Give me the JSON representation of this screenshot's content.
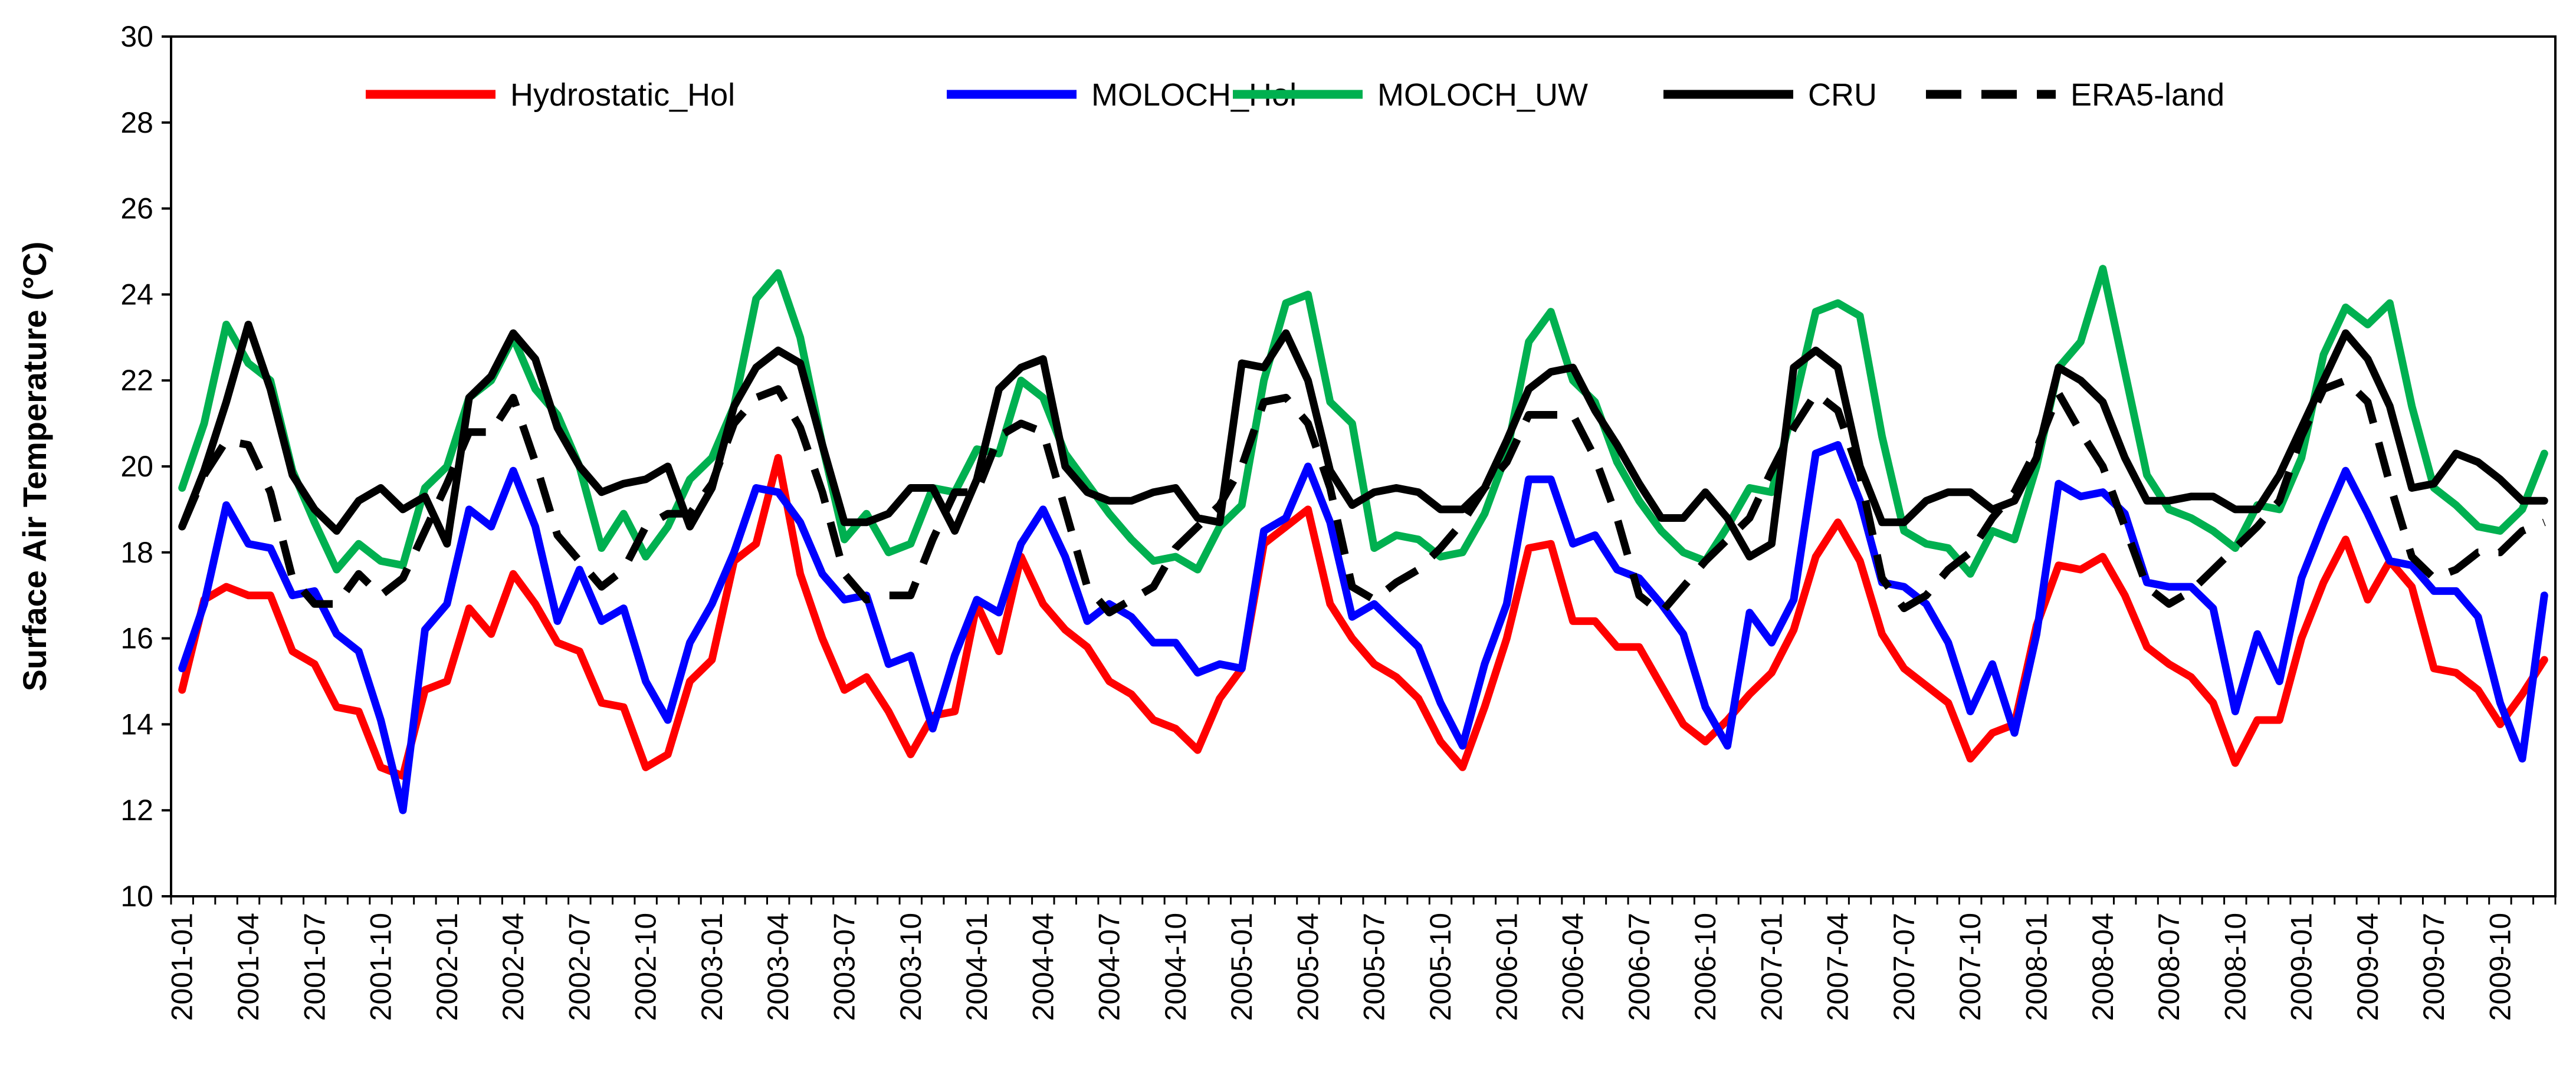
{
  "chart_data": {
    "type": "line",
    "title": "",
    "xlabel": "",
    "ylabel": "Surface Air Temperature (°C)",
    "ylim": [
      10,
      30
    ],
    "y_ticks": [
      10,
      12,
      14,
      16,
      18,
      20,
      22,
      24,
      26,
      28,
      30
    ],
    "grid": false,
    "legend_position": "top",
    "x_tick_labels": [
      "2001-01",
      "2001-04",
      "2001-07",
      "2001-10",
      "2002-01",
      "2002-04",
      "2002-07",
      "2002-10",
      "2003-01",
      "2003-04",
      "2003-07",
      "2003-10",
      "2004-01",
      "2004-04",
      "2004-07",
      "2004-10",
      "2005-01",
      "2005-04",
      "2005-07",
      "2005-10",
      "2006-01",
      "2006-04",
      "2006-07",
      "2006-10",
      "2007-01",
      "2007-04",
      "2007-07",
      "2007-10",
      "2008-01",
      "2008-04",
      "2008-07",
      "2008-10",
      "2009-01",
      "2009-04",
      "2009-07",
      "2009-10"
    ],
    "series": [
      {
        "name": "Hydrostatic_Hol",
        "color": "#ff0000",
        "dash": "solid",
        "values": [
          14.8,
          16.9,
          17.2,
          17.0,
          17.0,
          15.7,
          15.4,
          14.4,
          14.3,
          13.0,
          12.8,
          14.8,
          15.0,
          16.7,
          16.1,
          17.5,
          16.8,
          15.9,
          15.7,
          14.5,
          14.4,
          13.0,
          13.3,
          15.0,
          15.5,
          17.8,
          18.2,
          20.2,
          17.5,
          16.0,
          14.8,
          15.1,
          14.3,
          13.3,
          14.2,
          14.3,
          16.8,
          15.7,
          17.9,
          16.8,
          16.2,
          15.8,
          15.0,
          14.7,
          14.1,
          13.9,
          13.4,
          14.6,
          15.3,
          18.2,
          18.6,
          19.0,
          16.8,
          16.0,
          15.4,
          15.1,
          14.6,
          13.6,
          13.0,
          14.4,
          16.0,
          18.1,
          18.2,
          16.4,
          16.4,
          15.8,
          15.8,
          14.9,
          14.0,
          13.6,
          14.1,
          14.7,
          15.2,
          16.2,
          17.9,
          18.7,
          17.8,
          16.1,
          15.3,
          14.9,
          14.5,
          13.2,
          13.8,
          14.0,
          16.3,
          17.7,
          17.6,
          17.9,
          17.0,
          15.8,
          15.4,
          15.1,
          14.5,
          13.1,
          14.1,
          14.1,
          16.0,
          17.3,
          18.3,
          16.9,
          17.8,
          17.2,
          15.3,
          15.2,
          14.8,
          14.0,
          14.7,
          15.5
        ]
      },
      {
        "name": "MOLOCH_Hol",
        "color": "#0000ff",
        "dash": "solid",
        "values": [
          15.3,
          16.8,
          19.1,
          18.2,
          18.1,
          17.0,
          17.1,
          16.1,
          15.7,
          14.1,
          12.0,
          16.2,
          16.8,
          19.0,
          18.6,
          19.9,
          18.6,
          16.4,
          17.6,
          16.4,
          16.7,
          15.0,
          14.1,
          15.9,
          16.8,
          18.0,
          19.5,
          19.4,
          18.7,
          17.5,
          16.9,
          17.0,
          15.4,
          15.6,
          13.9,
          15.6,
          16.9,
          16.6,
          18.2,
          19.0,
          17.9,
          16.4,
          16.8,
          16.5,
          15.9,
          15.9,
          15.2,
          15.4,
          15.3,
          18.5,
          18.8,
          20.0,
          18.7,
          16.5,
          16.8,
          16.3,
          15.8,
          14.5,
          13.5,
          15.4,
          16.8,
          19.7,
          19.7,
          18.2,
          18.4,
          17.6,
          17.4,
          16.8,
          16.1,
          14.4,
          13.5,
          16.6,
          15.9,
          16.9,
          20.3,
          20.5,
          19.2,
          17.3,
          17.2,
          16.8,
          15.9,
          14.3,
          15.4,
          13.8,
          16.1,
          19.6,
          19.3,
          19.4,
          18.9,
          17.3,
          17.2,
          17.2,
          16.7,
          14.3,
          16.1,
          15.0,
          17.4,
          18.7,
          19.9,
          18.9,
          17.8,
          17.7,
          17.1,
          17.1,
          16.5,
          14.5,
          13.2,
          17.0
        ]
      },
      {
        "name": "MOLOCH_UW",
        "color": "#00b050",
        "dash": "solid",
        "values": [
          19.5,
          21.0,
          23.3,
          22.4,
          22.0,
          19.9,
          18.7,
          17.6,
          18.2,
          17.8,
          17.7,
          19.5,
          20.0,
          21.6,
          22.0,
          23.0,
          21.8,
          21.2,
          20.0,
          18.1,
          18.9,
          17.9,
          18.6,
          19.7,
          20.2,
          21.4,
          23.9,
          24.5,
          23.0,
          20.5,
          18.3,
          18.9,
          18.0,
          18.2,
          19.5,
          19.4,
          20.4,
          20.3,
          22.0,
          21.6,
          20.3,
          19.6,
          18.9,
          18.3,
          17.8,
          17.9,
          17.6,
          18.6,
          19.1,
          22.0,
          23.8,
          24.0,
          21.5,
          21.0,
          18.1,
          18.4,
          18.3,
          17.9,
          18.0,
          18.9,
          20.3,
          22.9,
          23.6,
          22.0,
          21.5,
          20.1,
          19.2,
          18.5,
          18.0,
          17.8,
          18.6,
          19.5,
          19.4,
          21.4,
          23.6,
          23.8,
          23.5,
          20.7,
          18.5,
          18.2,
          18.1,
          17.5,
          18.5,
          18.3,
          20.0,
          22.3,
          22.9,
          24.6,
          22.2,
          19.8,
          19.0,
          18.8,
          18.5,
          18.1,
          19.1,
          19.0,
          20.2,
          22.6,
          23.7,
          23.3,
          23.8,
          21.4,
          19.5,
          19.1,
          18.6,
          18.5,
          19.0,
          20.3
        ]
      },
      {
        "name": "CRU",
        "color": "#000000",
        "dash": "solid",
        "values": [
          18.6,
          19.9,
          21.5,
          23.3,
          21.8,
          19.8,
          19.0,
          18.5,
          19.2,
          19.5,
          19.0,
          19.3,
          18.2,
          21.6,
          22.1,
          23.1,
          22.5,
          20.9,
          20.0,
          19.4,
          19.6,
          19.7,
          20.0,
          18.6,
          19.5,
          21.4,
          22.3,
          22.7,
          22.4,
          20.5,
          18.7,
          18.7,
          18.9,
          19.5,
          19.5,
          18.5,
          19.7,
          21.8,
          22.3,
          22.5,
          20.0,
          19.4,
          19.2,
          19.2,
          19.4,
          19.5,
          18.8,
          18.7,
          22.4,
          22.3,
          23.1,
          22.0,
          19.9,
          19.1,
          19.4,
          19.5,
          19.4,
          19.0,
          19.0,
          19.5,
          20.6,
          21.8,
          22.2,
          22.3,
          21.3,
          20.5,
          19.6,
          18.8,
          18.8,
          19.4,
          18.8,
          17.9,
          18.2,
          22.3,
          22.7,
          22.3,
          20.0,
          18.7,
          18.7,
          19.2,
          19.4,
          19.4,
          19.0,
          19.2,
          20.2,
          22.3,
          22.0,
          21.5,
          20.2,
          19.2,
          19.2,
          19.3,
          19.3,
          19.0,
          19.0,
          19.8,
          20.9,
          22.0,
          23.1,
          22.5,
          21.4,
          19.5,
          19.6,
          20.3,
          20.1,
          19.7,
          19.2,
          19.2
        ]
      },
      {
        "name": "ERA5-land",
        "color": "#000000",
        "dash": "dashed",
        "values": [
          18.6,
          19.8,
          20.6,
          20.5,
          19.4,
          17.4,
          16.8,
          16.8,
          17.5,
          17.0,
          17.4,
          18.5,
          19.6,
          20.8,
          20.8,
          21.6,
          20.1,
          18.4,
          17.8,
          17.2,
          17.6,
          18.6,
          18.9,
          18.9,
          19.6,
          21.0,
          21.6,
          21.8,
          20.9,
          19.4,
          17.5,
          16.9,
          17.0,
          17.0,
          18.3,
          19.4,
          19.4,
          20.7,
          21.0,
          20.8,
          19.0,
          17.2,
          16.6,
          16.9,
          17.2,
          18.1,
          18.6,
          19.1,
          20.0,
          21.5,
          21.6,
          21.0,
          19.5,
          17.2,
          16.9,
          17.3,
          17.6,
          18.1,
          18.7,
          19.5,
          20.1,
          21.2,
          21.2,
          21.2,
          20.2,
          18.8,
          17.0,
          16.6,
          17.2,
          17.8,
          18.3,
          18.8,
          19.9,
          20.9,
          21.7,
          21.3,
          19.8,
          17.4,
          16.7,
          17.0,
          17.6,
          18.0,
          18.8,
          19.4,
          20.4,
          21.7,
          20.8,
          20.0,
          18.6,
          17.2,
          16.8,
          17.1,
          17.6,
          18.1,
          18.6,
          19.2,
          20.7,
          21.8,
          22.0,
          21.5,
          19.6,
          17.9,
          17.4,
          17.6,
          18.0,
          18.0,
          18.5,
          18.7
        ]
      }
    ]
  }
}
